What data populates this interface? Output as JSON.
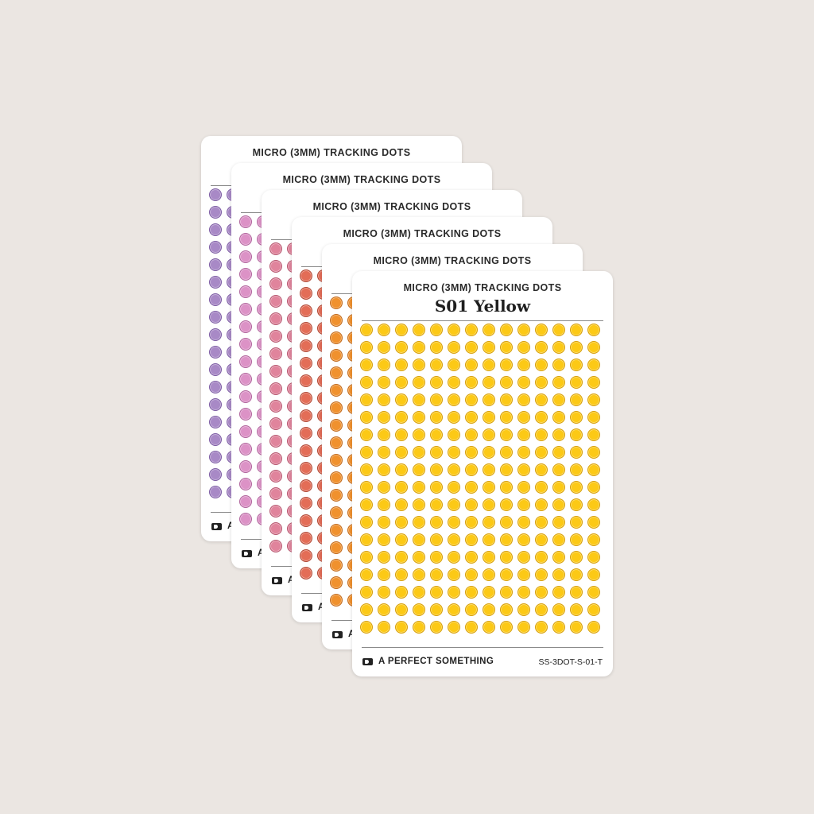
{
  "brand": "A PERFECT SOMETHING",
  "sheets": [
    {
      "title": "MICRO (3MM) TRACKING DOTS",
      "dot_fill": "#a889c6",
      "dot_ring": "#7d5ca4"
    },
    {
      "title": "MICRO (3MM) TRACKING DOTS",
      "dot_fill": "#dc92c6",
      "dot_ring": "#b1649d"
    },
    {
      "title": "MICRO (3MM) TRACKING DOTS",
      "dot_fill": "#e0849c",
      "dot_ring": "#b6566f"
    },
    {
      "title": "MICRO (3MM) TRACKING DOTS",
      "dot_fill": "#e36d57",
      "dot_ring": "#b04734"
    },
    {
      "title": "MICRO (3MM) TRACKING DOTS",
      "dot_fill": "#f0912e",
      "dot_ring": "#c1691b"
    },
    {
      "title": "MICRO (3MM) TRACKING DOTS",
      "name": "S01 Yellow",
      "sku": "SS-3DOT-S-01-T",
      "dot_fill": "#fcc916",
      "dot_ring": "#d69f0a"
    }
  ],
  "dot_grid": {
    "columns": 14,
    "rows": 18
  }
}
